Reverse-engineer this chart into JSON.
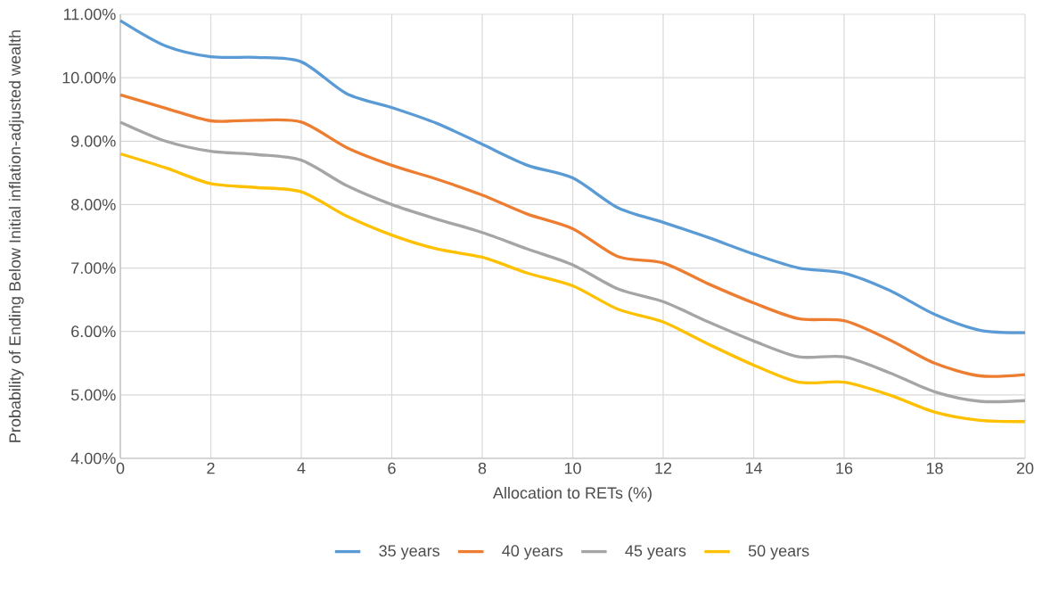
{
  "chart_data": {
    "type": "line",
    "xlabel": "Allocation to RETs (%)",
    "ylabel": "Probability of Ending Below Initial inflation-adjusted wealth",
    "x": [
      0,
      1,
      2,
      3,
      4,
      5,
      6,
      7,
      8,
      9,
      10,
      11,
      12,
      13,
      14,
      15,
      16,
      17,
      18,
      19,
      20
    ],
    "series": [
      {
        "name": "35 years",
        "color": "#5b9bd5",
        "values": [
          10.9,
          10.5,
          10.33,
          10.32,
          10.25,
          9.75,
          9.53,
          9.28,
          8.95,
          8.62,
          8.42,
          7.95,
          7.72,
          7.48,
          7.22,
          7.0,
          6.92,
          6.65,
          6.27,
          6.02,
          5.98
        ]
      },
      {
        "name": "40 years",
        "color": "#ed7d31",
        "values": [
          9.73,
          9.52,
          9.32,
          9.33,
          9.3,
          8.9,
          8.62,
          8.4,
          8.15,
          7.85,
          7.62,
          7.18,
          7.08,
          6.75,
          6.45,
          6.2,
          6.17,
          5.87,
          5.5,
          5.3,
          5.32
        ]
      },
      {
        "name": "45 years",
        "color": "#a5a5a5",
        "values": [
          9.3,
          9.0,
          8.84,
          8.79,
          8.7,
          8.3,
          8.0,
          7.77,
          7.56,
          7.3,
          7.05,
          6.67,
          6.47,
          6.15,
          5.85,
          5.6,
          5.6,
          5.35,
          5.05,
          4.9,
          4.91
        ]
      },
      {
        "name": "50 years",
        "color": "#ffc000",
        "values": [
          8.8,
          8.58,
          8.33,
          8.27,
          8.2,
          7.82,
          7.52,
          7.3,
          7.17,
          6.92,
          6.72,
          6.35,
          6.15,
          5.8,
          5.47,
          5.2,
          5.2,
          5.0,
          4.73,
          4.6,
          4.58
        ]
      }
    ],
    "xlim": [
      0,
      20
    ],
    "xticks": [
      0,
      2,
      4,
      6,
      8,
      10,
      12,
      14,
      16,
      18,
      20
    ],
    "ylim": [
      4,
      11
    ],
    "yticks": [
      {
        "value": 4,
        "label": "4.00%"
      },
      {
        "value": 5,
        "label": "5.00%"
      },
      {
        "value": 6,
        "label": "6.00%"
      },
      {
        "value": 7,
        "label": "7.00%"
      },
      {
        "value": 8,
        "label": "8.00%"
      },
      {
        "value": 9,
        "label": "9.00%"
      },
      {
        "value": 10,
        "label": "10.00%"
      },
      {
        "value": 11,
        "label": "11.00%"
      }
    ],
    "grid": true,
    "legend": "bottom",
    "marker": "none",
    "line_style": "solid"
  }
}
